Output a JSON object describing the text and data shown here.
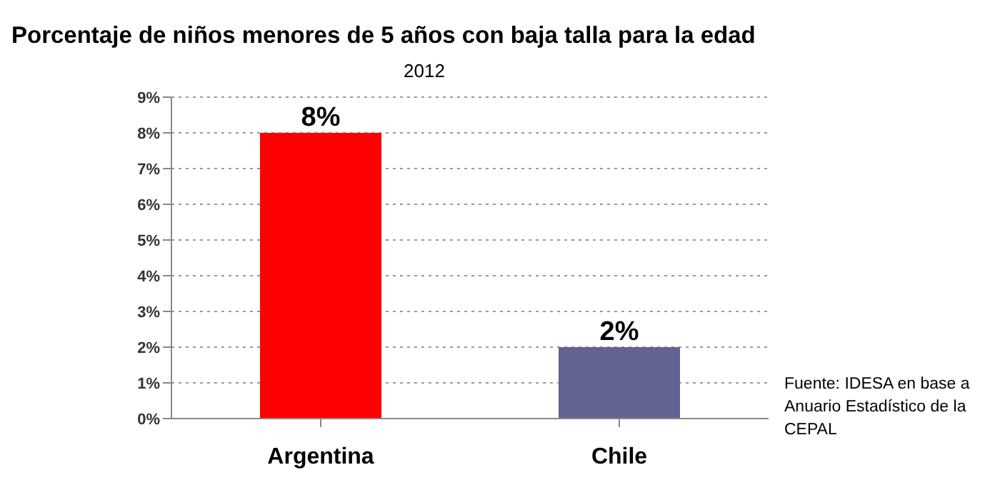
{
  "chart_data": {
    "type": "bar",
    "title": "Porcentaje de niños menores de 5 años con baja talla para la edad",
    "subtitle": "2012",
    "categories": [
      "Argentina",
      "Chile"
    ],
    "values": [
      8,
      2
    ],
    "colors": [
      "#ff0000",
      "#636391"
    ],
    "value_labels": [
      "8%",
      "2%"
    ],
    "ylim": [
      0,
      9
    ],
    "yticks": [
      {
        "value": 0,
        "label": "0%"
      },
      {
        "value": 1,
        "label": "1%"
      },
      {
        "value": 2,
        "label": "2%"
      },
      {
        "value": 3,
        "label": "3%"
      },
      {
        "value": 4,
        "label": "4%"
      },
      {
        "value": 5,
        "label": "5%"
      },
      {
        "value": 6,
        "label": "6%"
      },
      {
        "value": 7,
        "label": "7%"
      },
      {
        "value": 8,
        "label": "8%"
      },
      {
        "value": 9,
        "label": "9%"
      }
    ],
    "grid": "y",
    "annotations": [
      "Fuente: IDESA en base a Anuario Estadístico de la CEPAL"
    ]
  }
}
